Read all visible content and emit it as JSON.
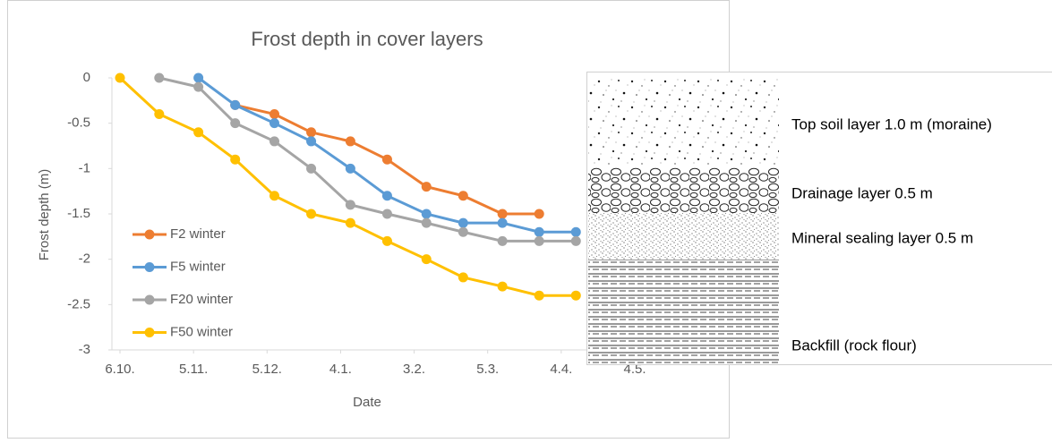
{
  "chart_data": {
    "type": "line",
    "title": "Frost depth in cover layers",
    "x_label": "Date",
    "y_label": "Frost depth (m)",
    "xlim": [
      0,
      210
    ],
    "ylim": [
      -3,
      0
    ],
    "xticks": [
      {
        "value": 0,
        "label": "6.10."
      },
      {
        "value": 30,
        "label": "5.11."
      },
      {
        "value": 60,
        "label": "5.12."
      },
      {
        "value": 90,
        "label": "4.1."
      },
      {
        "value": 120,
        "label": "3.2."
      },
      {
        "value": 150,
        "label": "5.3."
      },
      {
        "value": 180,
        "label": "4.4."
      },
      {
        "value": 210,
        "label": "4.5."
      }
    ],
    "yticks": [
      0,
      -0.5,
      -1,
      -1.5,
      -2,
      -2.5,
      -3
    ],
    "grid": false,
    "legend": "left",
    "series": [
      {
        "name": "F2 winter",
        "color": "#ED7D31",
        "x": [
          47,
          63,
          78,
          94,
          109,
          125,
          140,
          156,
          171
        ],
        "values": [
          -0.3,
          -0.4,
          -0.6,
          -0.7,
          -0.9,
          -1.2,
          -1.3,
          -1.5,
          -1.5
        ]
      },
      {
        "name": "F5 winter",
        "color": "#5B9BD5",
        "x": [
          32,
          47,
          63,
          78,
          94,
          109,
          125,
          140,
          156,
          171,
          186
        ],
        "values": [
          0,
          -0.3,
          -0.5,
          -0.7,
          -1.0,
          -1.3,
          -1.5,
          -1.6,
          -1.6,
          -1.7,
          -1.7
        ]
      },
      {
        "name": "F20 winter",
        "color": "#A5A5A5",
        "x": [
          16,
          32,
          47,
          63,
          78,
          94,
          109,
          125,
          140,
          156,
          171,
          186
        ],
        "values": [
          0,
          -0.1,
          -0.5,
          -0.7,
          -1.0,
          -1.4,
          -1.5,
          -1.6,
          -1.7,
          -1.8,
          -1.8,
          -1.8
        ]
      },
      {
        "name": "F50 winter",
        "color": "#FFC000",
        "x": [
          0,
          16,
          32,
          47,
          63,
          78,
          94,
          109,
          125,
          140,
          156,
          171,
          186
        ],
        "values": [
          0,
          -0.4,
          -0.6,
          -0.9,
          -1.3,
          -1.5,
          -1.6,
          -1.8,
          -2.0,
          -2.2,
          -2.3,
          -2.4,
          -2.4
        ]
      }
    ]
  },
  "diagram": {
    "layers": [
      "Top soil layer 1.0 m (moraine)",
      "Drainage layer 0.5 m",
      "Mineral sealing layer 0.5 m",
      "Backfill (rock flour)"
    ]
  }
}
